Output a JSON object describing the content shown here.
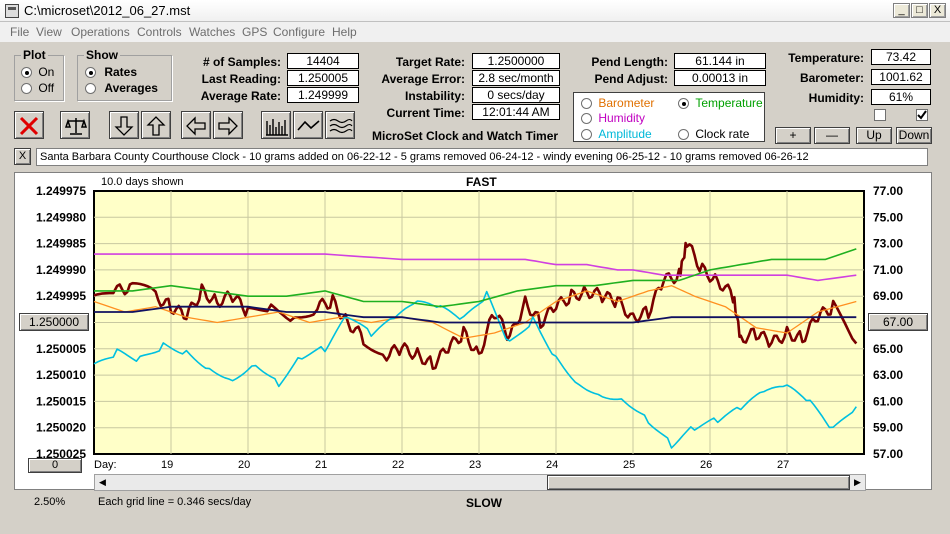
{
  "window": {
    "title": "C:\\microset\\2012_06_27.mst",
    "minimize_label": "_",
    "maximize_label": "□",
    "close_label": "X"
  },
  "menu": [
    "File",
    "View",
    "Operations",
    "Controls",
    "Watches",
    "GPS",
    "Configure",
    "Help"
  ],
  "plot_group": {
    "label": "Plot",
    "on_label": "On",
    "off_label": "Off",
    "selected": "On"
  },
  "show_group": {
    "label": "Show",
    "rates_label": "Rates",
    "averages_label": "Averages",
    "selected": "Rates"
  },
  "stats_left": [
    {
      "label": "# of Samples:",
      "value": "14404"
    },
    {
      "label": "Last Reading:",
      "value": "1.250005"
    },
    {
      "label": "Average Rate:",
      "value": "1.249999"
    }
  ],
  "stats_mid": [
    {
      "label": "Target Rate:",
      "value": "1.2500000"
    },
    {
      "label": "Average Error:",
      "value": "2.8 sec/month"
    },
    {
      "label": "Instability:",
      "value": "0 secs/day"
    },
    {
      "label": "Current Time:",
      "value": "12:01:44 AM"
    }
  ],
  "pend": [
    {
      "label": "Pend Length:",
      "value": "61.144 in"
    },
    {
      "label": "Pend Adjust:",
      "value": "0.00013 in"
    }
  ],
  "env": [
    {
      "label": "Temperature:",
      "value": "73.42"
    },
    {
      "label": "Barometer:",
      "value": "1001.62"
    },
    {
      "label": "Humidity:",
      "value": "61%"
    }
  ],
  "aux_options": [
    {
      "label": "Barometer",
      "color": "#e07000",
      "selected": false
    },
    {
      "label": "Temperature",
      "color": "#00a000",
      "selected": true
    },
    {
      "label": "Humidity",
      "color": "#c000c0",
      "selected": false
    },
    {
      "label": "Clock rate",
      "color": "#000000",
      "selected": false
    },
    {
      "label": "Amplitude",
      "color": "#00c8e6",
      "selected": false
    }
  ],
  "app_title": "MicroSet Clock and Watch Timer",
  "adjust_buttons": {
    "plus": "+",
    "minus": "—",
    "up": "Up",
    "down": "Down"
  },
  "toolbar_icons": [
    "clear-icon",
    "balance-icon",
    "arrow-down-icon",
    "arrow-up-icon",
    "arrow-left-icon",
    "arrow-right-icon",
    "bars-icon",
    "line-icon",
    "waves-icon"
  ],
  "note_close_label": "X",
  "note": "Santa Barbara County Courthouse Clock - 10 grams added on 06-22-12 - 5 grams removed 06-24-12 - windy evening 06-25-12 - 10 grams removed 06-26-12",
  "chart_header": {
    "days_shown": "10.0 days shown",
    "top_label": "FAST",
    "bottom_label": "SLOW"
  },
  "left_marker_value": "1.250000",
  "right_marker_value": "67.00",
  "scroll_value": "0",
  "percent": "2.50%",
  "grid_note": "Each grid line = 0.346 secs/day",
  "chart_data": {
    "type": "line",
    "x_label": "Day:",
    "x_ticks": [
      "19",
      "20",
      "21",
      "22",
      "23",
      "24",
      "25",
      "26",
      "27"
    ],
    "x_range": [
      18.0,
      28.0
    ],
    "y_left_ticks": [
      "1.249975",
      "1.249980",
      "1.249985",
      "1.249990",
      "1.249995",
      "1.250000",
      "1.250005",
      "1.250010",
      "1.250015",
      "1.250020",
      "1.250025"
    ],
    "y_left_range": [
      1.249975,
      1.250025
    ],
    "y_right_ticks": [
      "77.00",
      "75.00",
      "73.00",
      "71.00",
      "69.00",
      "67.00",
      "65.00",
      "63.00",
      "61.00",
      "59.00",
      "57.00"
    ],
    "y_right_range": [
      57.0,
      77.0
    ],
    "series": [
      {
        "color": "#7a0000",
        "axis": "left",
        "width": 2.6,
        "x": [
          18.0,
          18.3,
          18.5,
          18.8,
          19.0,
          19.2,
          19.4,
          19.6,
          19.8,
          20.0,
          20.3,
          20.6,
          20.9,
          21.1,
          21.3,
          21.5,
          21.8,
          22.0,
          22.2,
          22.4,
          22.6,
          22.8,
          23.0,
          23.2,
          23.4,
          23.6,
          23.8,
          24.0,
          24.2,
          24.4,
          24.6,
          24.8,
          25.0,
          25.2,
          25.4,
          25.6,
          25.7,
          25.9,
          26.1,
          26.3,
          26.4,
          26.6,
          26.8,
          27.0,
          27.2,
          27.4,
          27.6,
          27.9
        ],
        "y": [
          1.249996,
          1.249994,
          1.249993,
          1.249995,
          1.249997,
          1.249999,
          1.249994,
          1.249996,
          1.249995,
          1.249998,
          1.249997,
          1.249999,
          1.249997,
          1.249996,
          1.25,
          1.250003,
          1.250006,
          1.250005,
          1.250006,
          1.250008,
          1.250005,
          1.250002,
          1.250006,
          1.249998,
          1.250003,
          1.249996,
          1.25,
          1.249997,
          1.249995,
          1.249994,
          1.249995,
          1.249996,
          1.249999,
          1.249998,
          1.249992,
          1.249991,
          1.249985,
          1.24999,
          1.249992,
          1.249995,
          1.250003,
          1.250002,
          1.250004,
          1.250002,
          1.250003,
          1.249999,
          1.249997,
          1.250004
        ]
      },
      {
        "color": "#ff9020",
        "axis": "left",
        "width": 1.3,
        "x": [
          18.0,
          18.4,
          18.8,
          19.2,
          19.6,
          20.0,
          20.4,
          20.8,
          21.2,
          21.6,
          22.0,
          22.4,
          22.8,
          23.2,
          23.6,
          24.0,
          24.4,
          24.8,
          25.2,
          25.5,
          25.8,
          26.2,
          26.6,
          27.0,
          27.4,
          27.9
        ],
        "y": [
          1.249996,
          1.249998,
          1.249997,
          1.249999,
          1.25,
          1.249999,
          1.249998,
          1.25,
          1.249999,
          1.25,
          1.249999,
          1.25,
          1.250003,
          1.250002,
          1.25,
          1.249996,
          1.249994,
          1.249996,
          1.249994,
          1.249993,
          1.249995,
          1.249997,
          1.250001,
          1.250002,
          1.249998,
          1.249996
        ]
      },
      {
        "color": "#00c0e0",
        "axis": "left",
        "width": 1.6,
        "x": [
          18.0,
          18.3,
          18.6,
          18.9,
          19.2,
          19.5,
          19.8,
          20.1,
          20.4,
          20.7,
          21.0,
          21.3,
          21.6,
          21.9,
          22.2,
          22.5,
          22.8,
          23.1,
          23.4,
          23.7,
          24.0,
          24.3,
          24.6,
          24.9,
          25.2,
          25.5,
          25.8,
          26.1,
          26.4,
          26.7,
          27.0,
          27.3,
          27.6,
          27.9
        ],
        "y": [
          1.250009,
          1.250006,
          1.250007,
          1.250004,
          1.250005,
          1.250008,
          1.25001,
          1.250007,
          1.250011,
          1.250006,
          1.250005,
          1.249999,
          1.250003,
          1.25,
          1.249997,
          1.249998,
          1.25,
          1.249995,
          1.250004,
          1.249999,
          1.250006,
          1.250011,
          1.250013,
          1.250014,
          1.250018,
          1.250023,
          1.25002,
          1.250019,
          1.250017,
          1.250014,
          1.250013,
          1.250016,
          1.250021,
          1.250016
        ]
      },
      {
        "color": "#d040e0",
        "axis": "left",
        "width": 1.6,
        "x": [
          18.0,
          19.0,
          20.0,
          21.0,
          22.0,
          23.0,
          23.6,
          24.0,
          24.4,
          24.8,
          25.0,
          25.4,
          25.8,
          26.2,
          26.6,
          27.0,
          27.4,
          27.9
        ],
        "y": [
          1.249987,
          1.249987,
          1.249987,
          1.249987,
          1.249988,
          1.249988,
          1.249988,
          1.249989,
          1.249989,
          1.24999,
          1.24999,
          1.249991,
          1.249991,
          1.249991,
          1.249991,
          1.249991,
          1.249992,
          1.249991
        ]
      },
      {
        "color": "#20b020",
        "axis": "left",
        "width": 1.6,
        "x": [
          18.0,
          18.5,
          19.0,
          19.5,
          20.0,
          20.5,
          21.0,
          21.5,
          22.0,
          22.5,
          23.0,
          23.5,
          24.0,
          24.5,
          25.0,
          25.3,
          25.6,
          26.0,
          26.4,
          26.8,
          27.2,
          27.5,
          27.9
        ],
        "y": [
          1.249994,
          1.249994,
          1.249993,
          1.249994,
          1.249995,
          1.249995,
          1.249994,
          1.249996,
          1.249996,
          1.249997,
          1.249996,
          1.249994,
          1.249993,
          1.249993,
          1.249992,
          1.249992,
          1.249992,
          1.24999,
          1.249989,
          1.249988,
          1.249988,
          1.249988,
          1.249986
        ]
      },
      {
        "color": "#101060",
        "axis": "left",
        "width": 1.8,
        "x": [
          18.0,
          18.5,
          19.0,
          19.5,
          20.0,
          20.5,
          21.0,
          21.5,
          22.0,
          22.5,
          23.0,
          23.5,
          24.0,
          24.5,
          25.0,
          25.5,
          26.0,
          26.5,
          27.0,
          27.5,
          27.9
        ],
        "y": [
          1.249998,
          1.249998,
          1.249997,
          1.249997,
          1.249997,
          1.249998,
          1.249998,
          1.249999,
          1.249999,
          1.25,
          1.25,
          1.25,
          1.25,
          1.25,
          1.25,
          1.249999,
          1.249999,
          1.249999,
          1.249999,
          1.249999,
          1.249999
        ]
      }
    ]
  }
}
